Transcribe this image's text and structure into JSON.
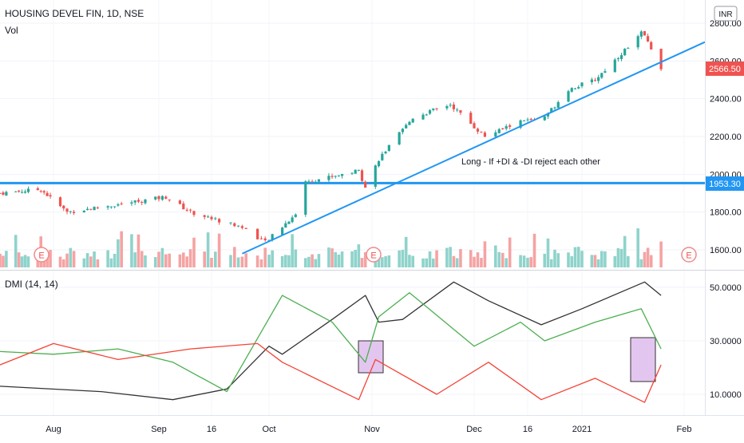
{
  "header": {
    "symbol_line": "HOUSING DEVEL FIN, 1D, NSE",
    "volume_label": "Vol",
    "currency": "INR"
  },
  "annotation": "Long - If +DI & -DI reject each other",
  "price_axis": {
    "ticks": [
      {
        "label": "2800.00",
        "value": 2800
      },
      {
        "label": "2600.00",
        "value": 2600
      },
      {
        "label": "2400.00",
        "value": 2400
      },
      {
        "label": "2200.00",
        "value": 2200
      },
      {
        "label": "2000.00",
        "value": 2000
      },
      {
        "label": "1800.00",
        "value": 1800
      },
      {
        "label": "1600.00",
        "value": 1600
      }
    ],
    "last_price": "2566.50",
    "horizontal_level": "1953.30"
  },
  "dmi_panel": {
    "title": "DMI (14, 14)",
    "ticks": [
      {
        "label": "50.0000",
        "value": 50
      },
      {
        "label": "30.0000",
        "value": 30
      },
      {
        "label": "10.0000",
        "value": 10
      }
    ]
  },
  "time_axis": {
    "labels": [
      "Aug",
      "Sep",
      "16",
      "Oct",
      "Nov",
      "Dec",
      "16",
      "2021",
      "Feb"
    ]
  },
  "earnings_marker": "E",
  "colors": {
    "up": "#26a69a",
    "down": "#ef5350",
    "vol_up": "#8fd3cb",
    "vol_down": "#f5a3a3",
    "trendline": "#2196f3",
    "adx": "#333333",
    "plus_di": "#4caf50",
    "minus_di": "#f44336",
    "highlight": "#e3c6f0"
  },
  "chart_data": [
    {
      "type": "candlestick",
      "title": "HOUSING DEVEL FIN, 1D, NSE",
      "ylabel": "INR",
      "ylim": [
        1560,
        2840
      ],
      "x_range": [
        "Jul 15",
        "Feb 15"
      ],
      "horizontal_line": 1953.3,
      "last_value": 2566.5,
      "trendline": {
        "from": [
          "Sep 24",
          1580
        ],
        "to": [
          "Feb 15",
          2700
        ]
      },
      "anchors": [
        {
          "x": "Jul 15",
          "y": 1900
        },
        {
          "x": "Jul 28",
          "y": 1920
        },
        {
          "x": "Aug 5",
          "y": 1800
        },
        {
          "x": "Aug 20",
          "y": 1840
        },
        {
          "x": "Sep 3",
          "y": 1880
        },
        {
          "x": "Sep 10",
          "y": 1800
        },
        {
          "x": "Sep 24",
          "y": 1720
        },
        {
          "x": "Sep 30",
          "y": 1640
        },
        {
          "x": "Oct 9",
          "y": 1790
        },
        {
          "x": "Oct 12",
          "y": 1960
        },
        {
          "x": "Oct 28",
          "y": 2020
        },
        {
          "x": "Oct 30",
          "y": 1930
        },
        {
          "x": "Nov 3",
          "y": 2080
        },
        {
          "x": "Nov 13",
          "y": 2300
        },
        {
          "x": "Nov 24",
          "y": 2370
        },
        {
          "x": "Dec 4",
          "y": 2200
        },
        {
          "x": "Dec 14",
          "y": 2280
        },
        {
          "x": "Dec 21",
          "y": 2300
        },
        {
          "x": "Dec 28",
          "y": 2450
        },
        {
          "x": "Jan 5",
          "y": 2500
        },
        {
          "x": "Jan 13",
          "y": 2640
        },
        {
          "x": "Jan 19",
          "y": 2750
        },
        {
          "x": "Jan 21",
          "y": 2700
        },
        {
          "x": "Jan 25",
          "y": 2566.5
        }
      ]
    },
    {
      "type": "bar",
      "title": "Vol",
      "x_range": [
        "Jul 15",
        "Jan 25"
      ]
    },
    {
      "type": "line",
      "title": "DMI (14, 14)",
      "ylim": [
        3,
        58
      ],
      "series": [
        {
          "color": "#333333",
          "points": [
            {
              "x": "Jul 15",
              "y": 13
            },
            {
              "x": "Aug 15",
              "y": 11
            },
            {
              "x": "Sep 5",
              "y": 8
            },
            {
              "x": "Sep 20",
              "y": 12
            },
            {
              "x": "Oct 1",
              "y": 28
            },
            {
              "x": "Oct 5",
              "y": 25
            },
            {
              "x": "Oct 20",
              "y": 38
            },
            {
              "x": "Oct 30",
              "y": 47
            },
            {
              "x": "Nov 3",
              "y": 37
            },
            {
              "x": "Nov 10",
              "y": 38
            },
            {
              "x": "Nov 25",
              "y": 52
            },
            {
              "x": "Dec 5",
              "y": 45
            },
            {
              "x": "Dec 20",
              "y": 36
            },
            {
              "x": "Jan 1",
              "y": 42
            },
            {
              "x": "Jan 20",
              "y": 52
            },
            {
              "x": "Jan 25",
              "y": 47
            }
          ]
        },
        {
          "color": "#4caf50",
          "points": [
            {
              "x": "Jul 15",
              "y": 26
            },
            {
              "x": "Aug 1",
              "y": 25
            },
            {
              "x": "Aug 20",
              "y": 27
            },
            {
              "x": "Sep 5",
              "y": 22
            },
            {
              "x": "Sep 20",
              "y": 11
            },
            {
              "x": "Oct 5",
              "y": 47
            },
            {
              "x": "Oct 20",
              "y": 37
            },
            {
              "x": "Oct 30",
              "y": 22
            },
            {
              "x": "Nov 3",
              "y": 39
            },
            {
              "x": "Nov 12",
              "y": 48
            },
            {
              "x": "Dec 1",
              "y": 28
            },
            {
              "x": "Dec 14",
              "y": 37
            },
            {
              "x": "Dec 21",
              "y": 30
            },
            {
              "x": "Jan 5",
              "y": 37
            },
            {
              "x": "Jan 19",
              "y": 42
            },
            {
              "x": "Jan 25",
              "y": 27
            }
          ]
        },
        {
          "color": "#f44336",
          "points": [
            {
              "x": "Jul 15",
              "y": 21
            },
            {
              "x": "Aug 1",
              "y": 29
            },
            {
              "x": "Aug 20",
              "y": 23
            },
            {
              "x": "Sep 10",
              "y": 27
            },
            {
              "x": "Sep 28",
              "y": 29
            },
            {
              "x": "Oct 5",
              "y": 22
            },
            {
              "x": "Oct 28",
              "y": 8
            },
            {
              "x": "Nov 2",
              "y": 23
            },
            {
              "x": "Nov 20",
              "y": 10
            },
            {
              "x": "Dec 5",
              "y": 22
            },
            {
              "x": "Dec 20",
              "y": 8
            },
            {
              "x": "Jan 5",
              "y": 16
            },
            {
              "x": "Jan 20",
              "y": 7
            },
            {
              "x": "Jan 25",
              "y": 21
            }
          ]
        }
      ]
    }
  ]
}
